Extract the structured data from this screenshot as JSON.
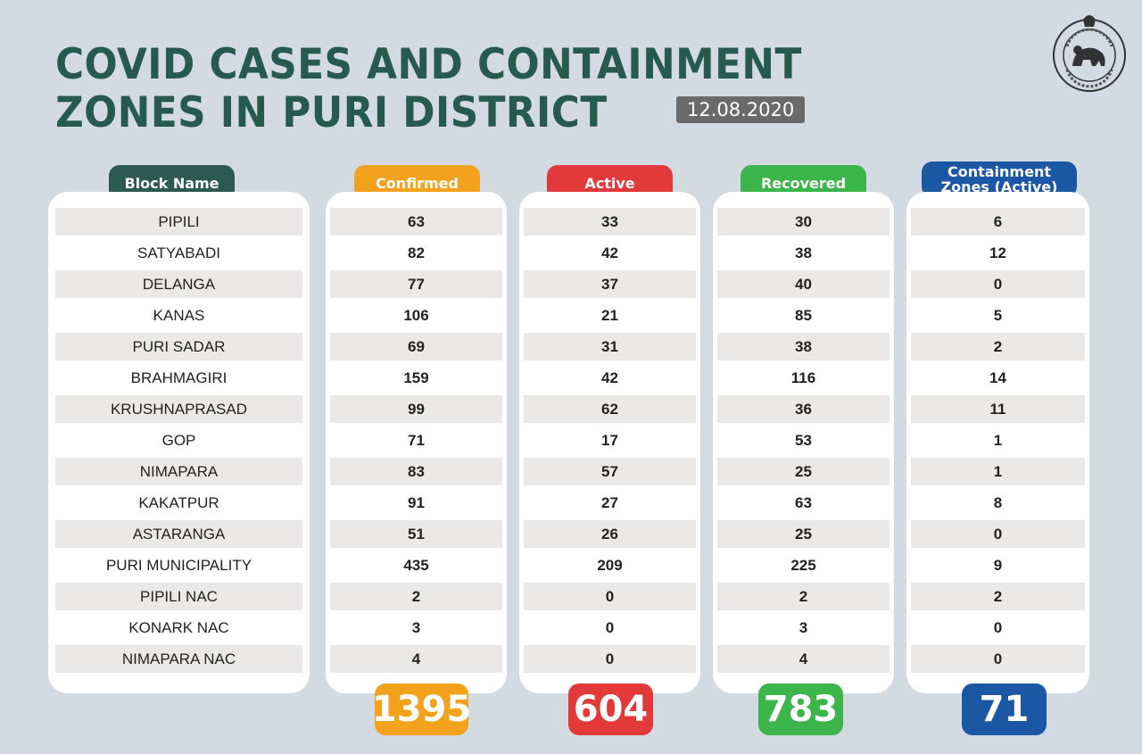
{
  "header": {
    "title_line1": "COVID CASES AND CONTAINMENT",
    "title_line2": "ZONES IN PURI DISTRICT",
    "date": "12.08.2020"
  },
  "emblem": {
    "text_top": "ଓଡ଼ିଶା ସରକାର",
    "text_bottom": "ଓଡ଼ିଶା ସରକାର"
  },
  "colors": {
    "title": "#255a4d",
    "block_name": "#2d5a50",
    "confirmed": "#f3a21e",
    "active": "#e2393b",
    "recovered": "#3cb54a",
    "containment": "#1b57a5"
  },
  "columns": {
    "block_name": "Block Name",
    "confirmed": "Confirmed",
    "active": "Active",
    "recovered": "Recovered",
    "containment_line1": "Containment",
    "containment_line2": "Zones (Active)"
  },
  "rows": [
    {
      "block": "PIPILI",
      "confirmed": "63",
      "active": "33",
      "recovered": "30",
      "containment": "6"
    },
    {
      "block": "SATYABADI",
      "confirmed": "82",
      "active": "42",
      "recovered": "38",
      "containment": "12"
    },
    {
      "block": "DELANGA",
      "confirmed": "77",
      "active": "37",
      "recovered": "40",
      "containment": "0"
    },
    {
      "block": "KANAS",
      "confirmed": "106",
      "active": "21",
      "recovered": "85",
      "containment": "5"
    },
    {
      "block": "PURI SADAR",
      "confirmed": "69",
      "active": "31",
      "recovered": "38",
      "containment": "2"
    },
    {
      "block": "BRAHMAGIRI",
      "confirmed": "159",
      "active": "42",
      "recovered": "116",
      "containment": "14"
    },
    {
      "block": "KRUSHNAPRASAD",
      "confirmed": "99",
      "active": "62",
      "recovered": "36",
      "containment": "11"
    },
    {
      "block": "GOP",
      "confirmed": "71",
      "active": "17",
      "recovered": "53",
      "containment": "1"
    },
    {
      "block": "NIMAPARA",
      "confirmed": "83",
      "active": "57",
      "recovered": "25",
      "containment": "1"
    },
    {
      "block": "KAKATPUR",
      "confirmed": "91",
      "active": "27",
      "recovered": "63",
      "containment": "8"
    },
    {
      "block": "ASTARANGA",
      "confirmed": "51",
      "active": "26",
      "recovered": "25",
      "containment": "0"
    },
    {
      "block": "PURI MUNICIPALITY",
      "confirmed": "435",
      "active": "209",
      "recovered": "225",
      "containment": "9"
    },
    {
      "block": "PIPILI NAC",
      "confirmed": "2",
      "active": "0",
      "recovered": "2",
      "containment": "2"
    },
    {
      "block": "KONARK NAC",
      "confirmed": "3",
      "active": "0",
      "recovered": "3",
      "containment": "0"
    },
    {
      "block": "NIMAPARA NAC",
      "confirmed": "4",
      "active": "0",
      "recovered": "4",
      "containment": "0"
    }
  ],
  "totals": {
    "confirmed": "1395",
    "active": "604",
    "recovered": "783",
    "containment": "71"
  }
}
